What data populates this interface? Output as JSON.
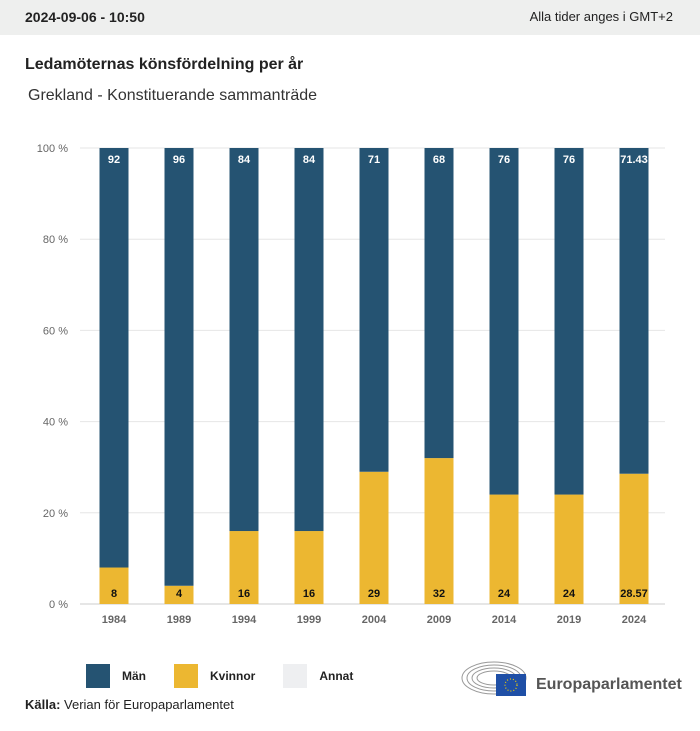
{
  "header": {
    "date": "2024-09-06 - 10:50",
    "timezone": "Alla tider anges i GMT+2"
  },
  "title": "Ledamöternas könsfördelning per år",
  "subtitle": "Grekland - Konstituerande sammanträde",
  "chart_data": {
    "type": "bar",
    "stacked": true,
    "categories": [
      "1984",
      "1989",
      "1994",
      "1999",
      "2004",
      "2009",
      "2014",
      "2019",
      "2024"
    ],
    "series": [
      {
        "name": "Kvinnor",
        "color": "#ecb731",
        "values": [
          8,
          4,
          16,
          16,
          29,
          32,
          24,
          24,
          28.57
        ],
        "labels": [
          "8",
          "4",
          "16",
          "16",
          "29",
          "32",
          "24",
          "24",
          "28.57"
        ]
      },
      {
        "name": "Män",
        "color": "#255372",
        "values": [
          92,
          96,
          84,
          84,
          71,
          68,
          76,
          76,
          71.43
        ],
        "labels": [
          "92",
          "96",
          "84",
          "84",
          "71",
          "68",
          "76",
          "76",
          "71.43"
        ]
      }
    ],
    "ylim": [
      0,
      100
    ],
    "yticks": [
      "0 %",
      "20 %",
      "40 %",
      "60 %",
      "80 %",
      "100 %"
    ],
    "grid": true,
    "legend_position": "bottom-left"
  },
  "legend": [
    {
      "label": "Män",
      "color": "#255372"
    },
    {
      "label": "Kvinnor",
      "color": "#ecb731"
    },
    {
      "label": "Annat",
      "color": "#eeeff1"
    }
  ],
  "source": {
    "label": "Källa:",
    "text": "Verian för Europaparlamentet"
  },
  "logo": {
    "text": "Europaparlamentet"
  }
}
